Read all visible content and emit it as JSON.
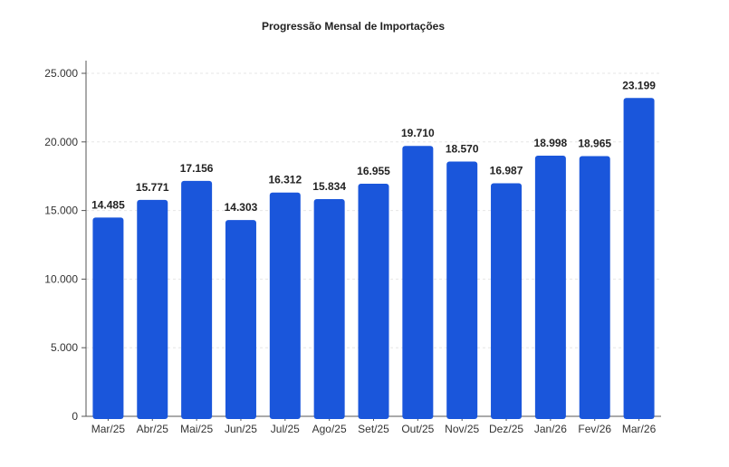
{
  "chart_data": {
    "type": "bar",
    "title": "Progressão Mensal de Importações",
    "xlabel": "",
    "ylabel": "",
    "categories": [
      "Mar/25",
      "Abr/25",
      "Mai/25",
      "Jun/25",
      "Jul/25",
      "Ago/25",
      "Set/25",
      "Out/25",
      "Nov/25",
      "Dez/25",
      "Jan/26",
      "Fev/26",
      "Mar/26"
    ],
    "values": [
      14485,
      15771,
      17156,
      14303,
      16312,
      15834,
      16955,
      19710,
      18570,
      16987,
      18998,
      18965,
      23199
    ],
    "value_labels": [
      "14.485",
      "15.771",
      "17.156",
      "14.303",
      "16.312",
      "15.834",
      "16.955",
      "19.710",
      "18.570",
      "16.987",
      "18.998",
      "18.965",
      "23.199"
    ],
    "ylim": [
      0,
      25000
    ],
    "y_ticks": [
      0,
      5000,
      10000,
      15000,
      20000,
      25000
    ],
    "y_tick_labels": [
      "0",
      "5.000",
      "10.000",
      "15.000",
      "20.000",
      "25.000"
    ],
    "grid": true,
    "legend": "none",
    "bar_color": "#1a56db"
  }
}
